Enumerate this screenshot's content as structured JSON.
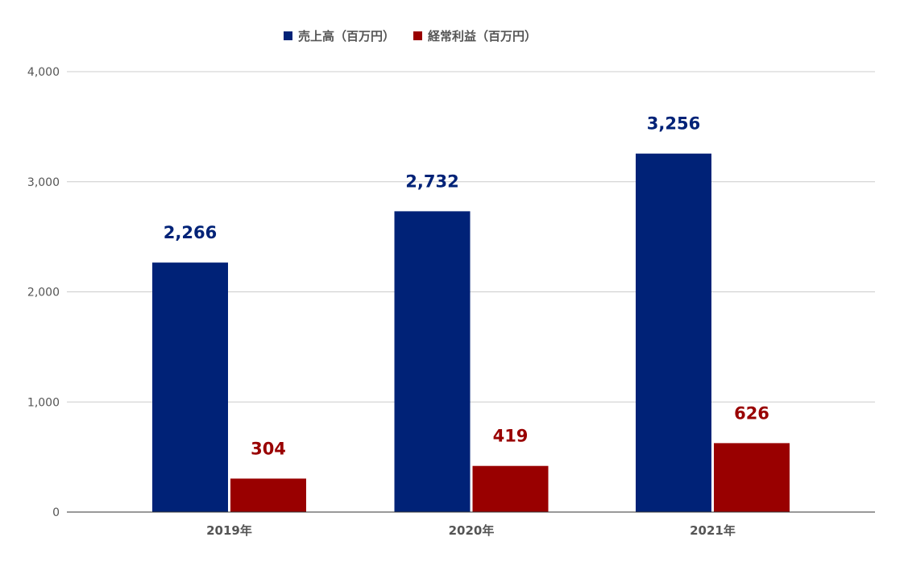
{
  "chart_data": {
    "type": "bar",
    "categories": [
      "2019年",
      "2020年",
      "2021年"
    ],
    "series": [
      {
        "name": "売上高（百万円）",
        "values": [
          2266,
          2732,
          3256
        ],
        "labels": [
          "2,266",
          "2,732",
          "3,256"
        ],
        "color": "#002277"
      },
      {
        "name": "経常利益（百万円）",
        "values": [
          304,
          419,
          626
        ],
        "labels": [
          "304",
          "419",
          "626"
        ],
        "color": "#990000"
      }
    ],
    "ylim": [
      0,
      4000
    ],
    "yticks": [
      0,
      1000,
      2000,
      3000,
      4000
    ],
    "ytick_labels": [
      "0",
      "1,000",
      "2,000",
      "3,000",
      "4,000"
    ],
    "legend_position": "top",
    "grid": true
  }
}
